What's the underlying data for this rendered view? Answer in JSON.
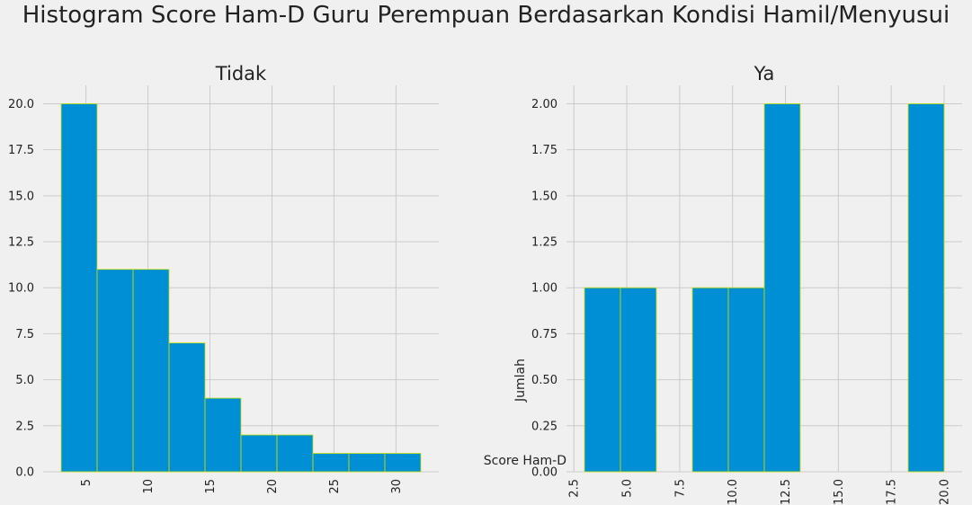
{
  "suptitle": "Histogram Score Ham-D Guru Perempuan Berdasarkan Kondisi Hamil/Menyusui",
  "colors": {
    "background": "#f0f0f0",
    "bar_fill": "#008fd5",
    "bar_edge": "#c8e000",
    "grid": "#cbcbcb",
    "text": "#222222"
  },
  "chart_data": [
    {
      "type": "bar",
      "title": "Tidak",
      "xlabel": "",
      "ylabel": "",
      "bin_edges": [
        3.0,
        5.9,
        8.8,
        11.7,
        14.6,
        17.5,
        20.4,
        23.3,
        26.2,
        29.1,
        32.0
      ],
      "values": [
        20,
        11,
        11,
        7,
        4,
        2,
        2,
        1,
        1,
        1
      ],
      "xlim": [
        1.55,
        33.45
      ],
      "ylim": [
        0,
        21
      ],
      "xticks": [
        5,
        10,
        15,
        20,
        25,
        30
      ],
      "xtick_labels": [
        "5",
        "10",
        "15",
        "20",
        "25",
        "30"
      ],
      "yticks": [
        0,
        2.5,
        5,
        7.5,
        10,
        12.5,
        15,
        17.5,
        20
      ],
      "ytick_labels": [
        "0.0",
        "2.5",
        "5.0",
        "7.5",
        "10.0",
        "12.5",
        "15.0",
        "17.5",
        "20.0"
      ],
      "grid": true
    },
    {
      "type": "bar",
      "title": "Ya",
      "xlabel": "Score Ham-D",
      "ylabel": "Jumlah",
      "bin_edges": [
        3.0,
        4.7,
        6.4,
        8.1,
        9.8,
        11.5,
        13.2,
        14.9,
        16.6,
        18.3,
        20.0
      ],
      "values": [
        1,
        1,
        0,
        1,
        1,
        2,
        0,
        0,
        0,
        2
      ],
      "xlim": [
        2.15,
        20.85
      ],
      "ylim": [
        0,
        2.1
      ],
      "xticks": [
        2.5,
        5,
        7.5,
        10,
        12.5,
        15,
        17.5,
        20
      ],
      "xtick_labels": [
        "2.5",
        "5.0",
        "7.5",
        "10.0",
        "12.5",
        "15.0",
        "17.5",
        "20.0"
      ],
      "yticks": [
        0,
        0.25,
        0.5,
        0.75,
        1,
        1.25,
        1.5,
        1.75,
        2
      ],
      "ytick_labels": [
        "0.00",
        "0.25",
        "0.50",
        "0.75",
        "1.00",
        "1.25",
        "1.50",
        "1.75",
        "2.00"
      ],
      "grid": true
    }
  ]
}
